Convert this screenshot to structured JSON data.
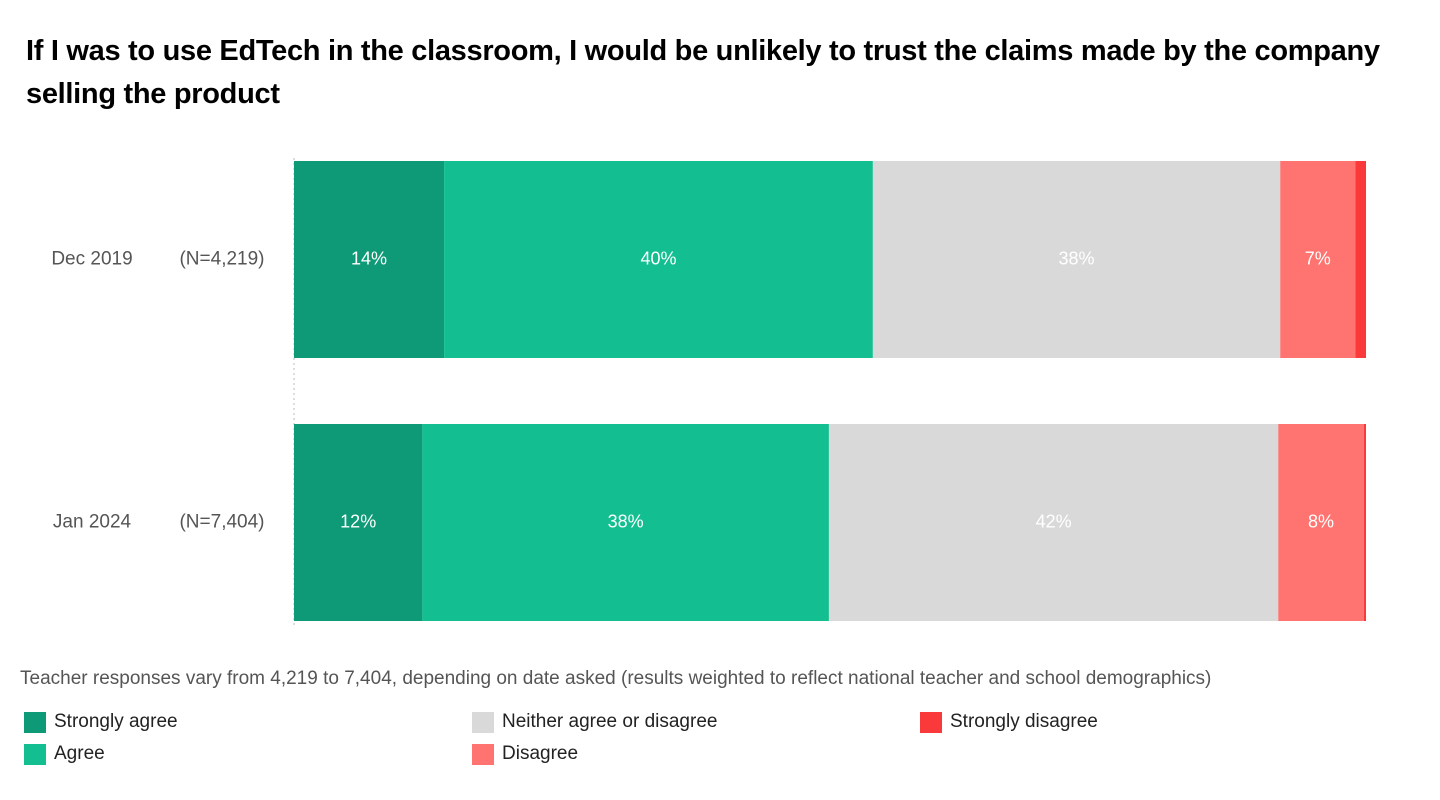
{
  "chart_data": {
    "type": "stacked-bar-horizontal",
    "title": "If I was to use EdTech in the classroom, I would be unlikely to trust the claims made by the company selling the product",
    "categories": [
      "Dec 2019",
      "Jan 2024"
    ],
    "n_labels": [
      "(N=4,219)",
      "(N=7,404)"
    ],
    "series": [
      {
        "name": "Strongly agree",
        "color": "#0e9a76",
        "values": [
          14,
          12
        ],
        "value_labels": [
          "14%",
          "12%"
        ]
      },
      {
        "name": "Agree",
        "color": "#13bf91",
        "values": [
          40,
          38
        ],
        "value_labels": [
          "40%",
          "38%"
        ]
      },
      {
        "name": "Neither agree or disagree",
        "color": "#d9d9d9",
        "values": [
          38,
          42
        ],
        "value_labels": [
          "38%",
          "42%"
        ]
      },
      {
        "name": "Disagree",
        "color": "#ff7470",
        "values": [
          7,
          8
        ],
        "value_labels": [
          "7%",
          "8%"
        ]
      },
      {
        "name": "Strongly disagree",
        "color": "#fa3a3a",
        "values": [
          1,
          0.2
        ],
        "value_labels": [
          null,
          null
        ]
      }
    ],
    "footnote": "Teacher responses vary from 4,219 to 7,404, depending on date asked (results weighted to reflect national teacher and school demographics)"
  }
}
